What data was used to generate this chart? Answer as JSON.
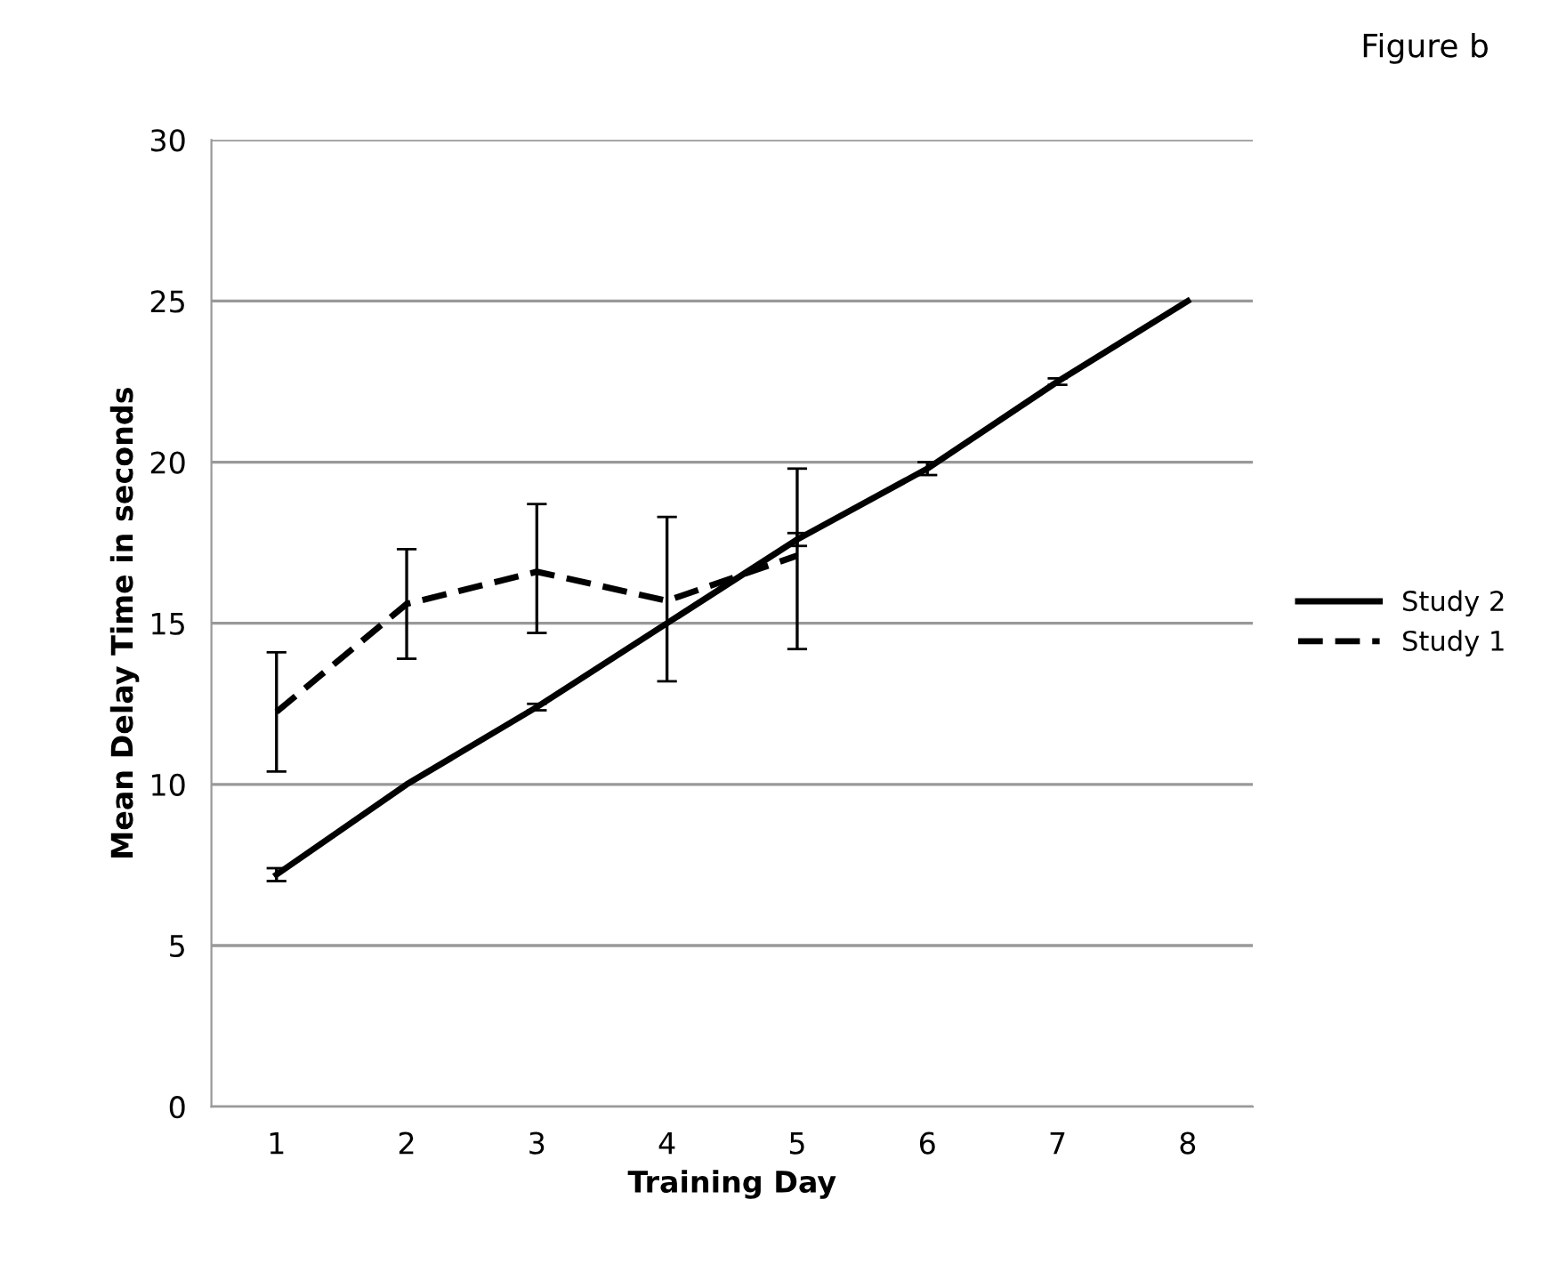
{
  "chart_data": {
    "type": "line",
    "title": "Figure b",
    "xlabel": "Training Day",
    "ylabel": "Mean Delay Time in seconds",
    "categories": [
      "1",
      "2",
      "3",
      "4",
      "5",
      "6",
      "7",
      "8"
    ],
    "series": [
      {
        "name": "Study 2",
        "color": "#000000",
        "line_style": "solid",
        "values": [
          7.2,
          10.0,
          12.4,
          15.0,
          17.6,
          19.8,
          22.5,
          25.0
        ],
        "errors": [
          0.2,
          null,
          0.1,
          null,
          0.2,
          0.2,
          0.1,
          null
        ]
      },
      {
        "name": "Study 1",
        "color": "#000000",
        "line_style": "dashed",
        "values": [
          12.25,
          15.6,
          16.6,
          15.7,
          17.1,
          null,
          null,
          null
        ],
        "errors": [
          [
            10.4,
            14.1
          ],
          [
            13.9,
            17.3
          ],
          [
            14.7,
            18.7
          ],
          [
            13.2,
            18.3
          ],
          [
            14.2,
            19.8
          ],
          null,
          null,
          null
        ]
      }
    ],
    "ylim": [
      0,
      30
    ],
    "yticks": [
      0,
      5,
      10,
      15,
      20,
      25,
      30
    ],
    "grid": "y",
    "legend": "right",
    "marker": "none"
  }
}
